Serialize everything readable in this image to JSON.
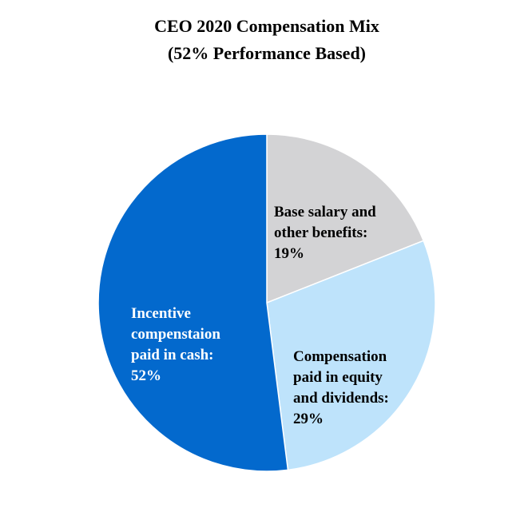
{
  "chart_data": {
    "type": "pie",
    "title": "CEO 2020 Compensation Mix",
    "subtitle": "(52% Performance Based)",
    "start_angle_deg": 0,
    "direction": "clockwise",
    "slices": [
      {
        "name": "Base salary and other benefits",
        "value": 19,
        "color": "#d3d3d5",
        "label_color": "#000000",
        "label_lines": [
          "Base salary and",
          "other benefits:",
          "19%"
        ]
      },
      {
        "name": "Compensation paid in equity and dividends",
        "value": 29,
        "color": "#bee3fb",
        "label_color": "#000000",
        "label_lines": [
          "Compensation",
          "paid in equity",
          "and dividends:",
          "29%"
        ]
      },
      {
        "name": "Incentive compenstaion paid in cash",
        "value": 52,
        "color": "#0369cd",
        "label_color": "#ffffff",
        "label_lines": [
          "Incentive",
          "compenstaion",
          "paid in cash:",
          "52%"
        ]
      }
    ]
  }
}
